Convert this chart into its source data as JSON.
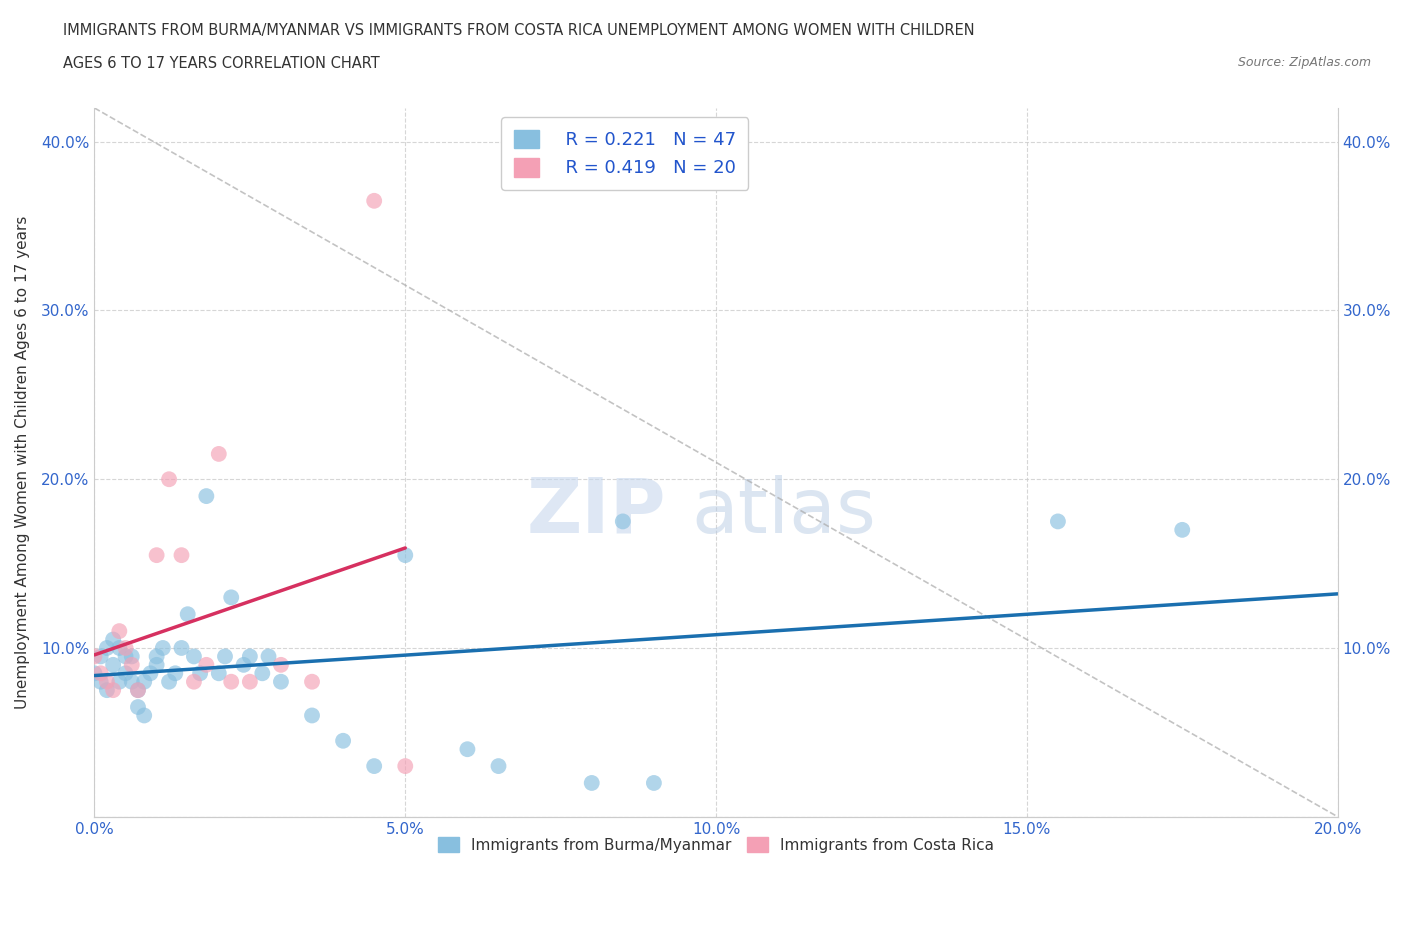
{
  "title_line1": "IMMIGRANTS FROM BURMA/MYANMAR VS IMMIGRANTS FROM COSTA RICA UNEMPLOYMENT AMONG WOMEN WITH CHILDREN",
  "title_line2": "AGES 6 TO 17 YEARS CORRELATION CHART",
  "source": "Source: ZipAtlas.com",
  "ylabel": "Unemployment Among Women with Children Ages 6 to 17 years",
  "xlim": [
    0.0,
    0.2
  ],
  "ylim": [
    0.0,
    0.42
  ],
  "xticks": [
    0.0,
    0.05,
    0.1,
    0.15,
    0.2
  ],
  "yticks": [
    0.0,
    0.1,
    0.2,
    0.3,
    0.4
  ],
  "xtick_labels": [
    "0.0%",
    "5.0%",
    "10.0%",
    "15.0%",
    "20.0%"
  ],
  "ytick_labels": [
    "",
    "10.0%",
    "20.0%",
    "30.0%",
    "40.0%"
  ],
  "legend_labels": [
    "Immigrants from Burma/Myanmar",
    "Immigrants from Costa Rica"
  ],
  "R_burma": 0.221,
  "N_burma": 47,
  "R_costa": 0.419,
  "N_costa": 20,
  "color_burma": "#88bfdf",
  "color_costa": "#f4a0b5",
  "line_color_burma": "#1a6faf",
  "line_color_costa": "#d63060",
  "watermark_zip": "ZIP",
  "watermark_atlas": "atlas",
  "burma_x": [
    0.0,
    0.001,
    0.001,
    0.002,
    0.002,
    0.003,
    0.003,
    0.004,
    0.004,
    0.005,
    0.005,
    0.006,
    0.006,
    0.007,
    0.007,
    0.008,
    0.008,
    0.009,
    0.01,
    0.01,
    0.011,
    0.012,
    0.013,
    0.014,
    0.015,
    0.016,
    0.017,
    0.018,
    0.02,
    0.021,
    0.022,
    0.024,
    0.025,
    0.027,
    0.028,
    0.03,
    0.035,
    0.04,
    0.045,
    0.05,
    0.06,
    0.065,
    0.08,
    0.085,
    0.09,
    0.155,
    0.175
  ],
  "burma_y": [
    0.085,
    0.095,
    0.08,
    0.1,
    0.075,
    0.105,
    0.09,
    0.1,
    0.08,
    0.095,
    0.085,
    0.08,
    0.095,
    0.075,
    0.065,
    0.08,
    0.06,
    0.085,
    0.09,
    0.095,
    0.1,
    0.08,
    0.085,
    0.1,
    0.12,
    0.095,
    0.085,
    0.19,
    0.085,
    0.095,
    0.13,
    0.09,
    0.095,
    0.085,
    0.095,
    0.08,
    0.06,
    0.045,
    0.03,
    0.155,
    0.04,
    0.03,
    0.02,
    0.175,
    0.02,
    0.175,
    0.17
  ],
  "costa_x": [
    0.0,
    0.001,
    0.002,
    0.003,
    0.004,
    0.005,
    0.006,
    0.007,
    0.01,
    0.012,
    0.014,
    0.016,
    0.018,
    0.02,
    0.022,
    0.025,
    0.03,
    0.035,
    0.045,
    0.05
  ],
  "costa_y": [
    0.095,
    0.085,
    0.08,
    0.075,
    0.11,
    0.1,
    0.09,
    0.075,
    0.155,
    0.2,
    0.155,
    0.08,
    0.09,
    0.215,
    0.08,
    0.08,
    0.09,
    0.08,
    0.365,
    0.03
  ]
}
